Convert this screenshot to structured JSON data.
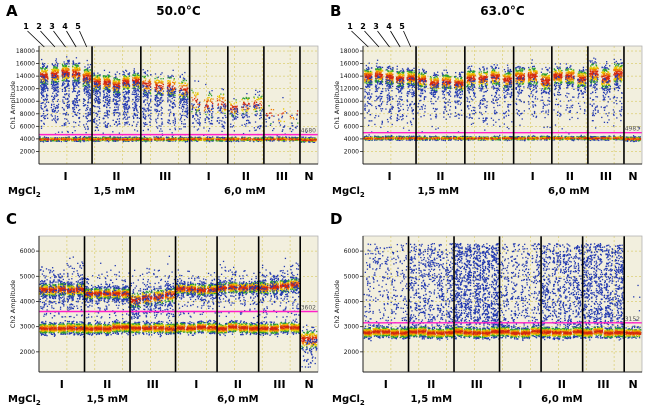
{
  "meta": {
    "figure_type": "ddPCR droplet amplitude scatter panels",
    "threshold_color": "#ff1fc8",
    "plot_bg": "#f2efde",
    "grid_color": "#d6c75a"
  },
  "chart_data": [
    {
      "id": "A",
      "type": "scatter",
      "letter": "A",
      "title": "50.0°C",
      "ylabel": "Ch1 Amplitude",
      "ylim": [
        0,
        18800
      ],
      "yticks": [
        2000,
        4000,
        6000,
        8000,
        10000,
        12000,
        14000,
        16000,
        18000
      ],
      "threshold": 4680,
      "threshold_label": "4680",
      "lane_numbers": [
        "1",
        "2",
        "3",
        "4",
        "5"
      ],
      "mgcl2": {
        "base": "MgCl",
        "sub": "2"
      },
      "conc_labels": [
        "1,5 mM",
        "6,0 mM"
      ],
      "seed": 7,
      "neg": {
        "y": 3950,
        "sd": 140,
        "n": 150
      },
      "groups": [
        {
          "label": "I",
          "lanes": 5,
          "w": 5.0,
          "rain": 10,
          "pos": {
            "kind": "column",
            "ymin": 5800,
            "top": 14200,
            "topsd": 900,
            "ntop": 150,
            "ntail": 90
          }
        },
        {
          "label": "II",
          "lanes": 5,
          "w": 4.6,
          "rain": 8,
          "pos": {
            "kind": "column",
            "ymin": 5600,
            "top": 12800,
            "topsd": 800,
            "ntop": 130,
            "ntail": 85
          }
        },
        {
          "label": "III",
          "lanes": 4,
          "w": 4.6,
          "rain": 14,
          "pos": {
            "kind": "column",
            "ymin": 5200,
            "top": 12300,
            "topsd": 1000,
            "ntop": 85,
            "ntail": 70
          }
        },
        {
          "label": "I",
          "lanes": 3,
          "w": 3.6,
          "rain": 8,
          "pos": {
            "kind": "column",
            "ymin": 5500,
            "top": 9800,
            "topsd": 1300,
            "ntop": 40,
            "ntail": 30
          }
        },
        {
          "label": "II",
          "lanes": 3,
          "w": 3.4,
          "rain": 6,
          "pos": {
            "kind": "column",
            "ymin": 5500,
            "top": 9200,
            "topsd": 900,
            "ntop": 45,
            "ntail": 22
          }
        },
        {
          "label": "III",
          "lanes": 3,
          "w": 3.4,
          "rain": 4,
          "pos": {
            "kind": "column",
            "ymin": 5000,
            "top": 8200,
            "topsd": 1200,
            "ntop": 10,
            "ntail": 8
          }
        },
        {
          "label": "N",
          "lanes": 1,
          "w": 1.7,
          "rain": 2,
          "neg": {
            "y": 3800,
            "sd": 180,
            "n": 200
          },
          "pos": {
            "kind": "none"
          }
        }
      ]
    },
    {
      "id": "B",
      "type": "scatter",
      "letter": "B",
      "title": "63.0°C",
      "ylabel": "Ch1 Amplitude",
      "ylim": [
        0,
        18800
      ],
      "yticks": [
        2000,
        4000,
        6000,
        8000,
        10000,
        12000,
        14000,
        16000,
        18000
      ],
      "threshold": 4983,
      "threshold_label": "4983",
      "lane_numbers": [
        "1",
        "2",
        "3",
        "4",
        "5"
      ],
      "mgcl2": {
        "base": "MgCl",
        "sub": "2"
      },
      "conc_labels": [
        "1,5 mM",
        "6,0 mM"
      ],
      "seed": 11,
      "neg": {
        "y": 4100,
        "sd": 130,
        "n": 150
      },
      "groups": [
        {
          "label": "I",
          "lanes": 5,
          "w": 5.0,
          "rain": 8,
          "pos": {
            "kind": "column",
            "ymin": 6500,
            "top": 13800,
            "topsd": 750,
            "ntop": 150,
            "ntail": 55
          }
        },
        {
          "label": "II",
          "lanes": 4,
          "w": 4.6,
          "rain": 6,
          "pos": {
            "kind": "column",
            "ymin": 7000,
            "top": 13200,
            "topsd": 750,
            "ntop": 140,
            "ntail": 45
          }
        },
        {
          "label": "III",
          "lanes": 4,
          "w": 4.6,
          "rain": 8,
          "pos": {
            "kind": "column",
            "ymin": 6200,
            "top": 13500,
            "topsd": 850,
            "ntop": 130,
            "ntail": 55
          }
        },
        {
          "label": "I",
          "lanes": 3,
          "w": 3.6,
          "rain": 6,
          "pos": {
            "kind": "column",
            "ymin": 7000,
            "top": 13600,
            "topsd": 900,
            "ntop": 150,
            "ntail": 40
          }
        },
        {
          "label": "II",
          "lanes": 3,
          "w": 3.4,
          "rain": 5,
          "pos": {
            "kind": "column",
            "ymin": 7200,
            "top": 13900,
            "topsd": 800,
            "ntop": 150,
            "ntail": 35
          }
        },
        {
          "label": "III",
          "lanes": 3,
          "w": 3.4,
          "rain": 6,
          "pos": {
            "kind": "column",
            "ymin": 6800,
            "top": 14100,
            "topsd": 1000,
            "ntop": 160,
            "ntail": 40
          }
        },
        {
          "label": "N",
          "lanes": 1,
          "w": 1.7,
          "rain": 2,
          "neg": {
            "y": 4000,
            "sd": 160,
            "n": 200
          },
          "pos": {
            "kind": "none"
          }
        }
      ]
    },
    {
      "id": "C",
      "type": "scatter",
      "letter": "C",
      "ylabel": "Ch2 Amplitude",
      "ylim": [
        1200,
        6600
      ],
      "yticks": [
        2000,
        3000,
        4000,
        5000,
        6000
      ],
      "threshold": 3602,
      "threshold_label": "3602",
      "mgcl2": {
        "base": "MgCl",
        "sub": "2"
      },
      "conc_labels": [
        "1,5 mM",
        "6,0 mM"
      ],
      "seed": 13,
      "neg": {
        "y": 2950,
        "sd": 110,
        "n": 160
      },
      "groups": [
        {
          "label": "I",
          "lanes": 5,
          "w": 4.6,
          "rain": 10,
          "pos": {
            "kind": "band",
            "y": 4450,
            "sd": 140,
            "n": 150,
            "bsd": 550,
            "nb": 55
          }
        },
        {
          "label": "II",
          "lanes": 5,
          "w": 4.6,
          "rain": 8,
          "pos": {
            "kind": "band",
            "y": 4300,
            "sd": 120,
            "n": 150,
            "bsd": 400,
            "nb": 35
          }
        },
        {
          "label": "III",
          "lanes": 4,
          "w": 4.6,
          "rain": 16,
          "pos": {
            "kind": "band",
            "y": 4150,
            "sd": 170,
            "n": 120,
            "bsd": 550,
            "nb": 60,
            "slope": 90
          }
        },
        {
          "label": "I",
          "lanes": 4,
          "w": 4.2,
          "rain": 8,
          "pos": {
            "kind": "band",
            "y": 4480,
            "sd": 120,
            "n": 160,
            "bsd": 380,
            "nb": 35
          }
        },
        {
          "label": "II",
          "lanes": 4,
          "w": 4.2,
          "rain": 8,
          "pos": {
            "kind": "band",
            "y": 4550,
            "sd": 120,
            "n": 160,
            "bsd": 380,
            "nb": 40
          }
        },
        {
          "label": "III",
          "lanes": 4,
          "w": 4.2,
          "rain": 10,
          "pos": {
            "kind": "band",
            "y": 4600,
            "sd": 140,
            "n": 150,
            "bsd": 420,
            "nb": 45,
            "slope": 40
          }
        },
        {
          "label": "N",
          "lanes": 1,
          "w": 1.8,
          "rain": 0,
          "neg": {
            "y": 2480,
            "sd": 210,
            "n": 190
          },
          "pos": {
            "kind": "cloud",
            "ymin": 1350,
            "ymax": 2500,
            "n": 50
          }
        }
      ]
    },
    {
      "id": "D",
      "type": "scatter",
      "letter": "D",
      "ylabel": "Ch2 Amplitude",
      "ylim": [
        1200,
        6600
      ],
      "yticks": [
        2000,
        3000,
        4000,
        5000,
        6000
      ],
      "threshold": 3152,
      "threshold_label": "3152",
      "mgcl2": {
        "base": "MgCl",
        "sub": "2"
      },
      "conc_labels": [
        "1,5 mM",
        "6,0 mM"
      ],
      "seed": 17,
      "neg": {
        "y": 2780,
        "sd": 105,
        "n": 170
      },
      "groups": [
        {
          "label": "I",
          "lanes": 5,
          "w": 4.6,
          "rain": 0,
          "pos": {
            "kind": "cloud",
            "ymin": 3050,
            "ymax": 6300,
            "n": 55
          }
        },
        {
          "label": "II",
          "lanes": 5,
          "w": 4.6,
          "rain": 0,
          "pos": {
            "kind": "cloud",
            "ymin": 3050,
            "ymax": 6300,
            "n": 120
          }
        },
        {
          "label": "III",
          "lanes": 5,
          "w": 4.6,
          "rain": 0,
          "pos": {
            "kind": "cloud",
            "ymin": 3050,
            "ymax": 6300,
            "n": 230
          }
        },
        {
          "label": "I",
          "lanes": 4,
          "w": 4.2,
          "rain": 0,
          "pos": {
            "kind": "cloud",
            "ymin": 3050,
            "ymax": 6300,
            "n": 95
          }
        },
        {
          "label": "II",
          "lanes": 4,
          "w": 4.2,
          "rain": 0,
          "pos": {
            "kind": "cloud",
            "ymin": 3050,
            "ymax": 6300,
            "n": 160
          }
        },
        {
          "label": "III",
          "lanes": 4,
          "w": 4.2,
          "rain": 0,
          "pos": {
            "kind": "cloud",
            "ymin": 3050,
            "ymax": 6300,
            "n": 210
          }
        },
        {
          "label": "N",
          "lanes": 1,
          "w": 1.8,
          "rain": 0,
          "neg": {
            "y": 2750,
            "sd": 100,
            "n": 190
          },
          "pos": {
            "kind": "cloud",
            "ymin": 3050,
            "ymax": 5000,
            "n": 6
          }
        }
      ]
    }
  ]
}
